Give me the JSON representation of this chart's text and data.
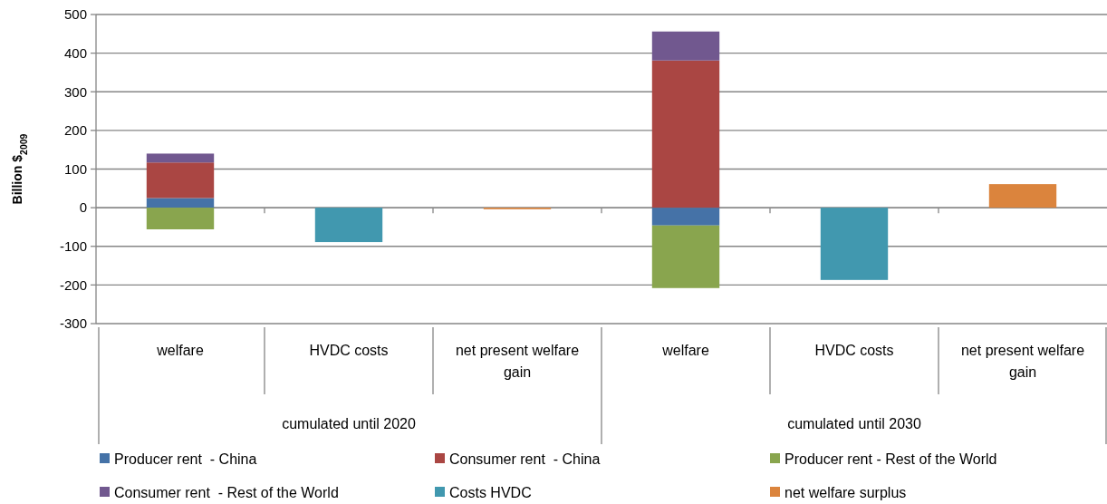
{
  "chart_data": {
    "type": "bar",
    "stacked": true,
    "ylabel": "Billion $$_{2009}$",
    "categories": [
      "welfare",
      "HVDC costs",
      "net present welfare gain",
      "welfare",
      "HVDC costs",
      "net present welfare gain"
    ],
    "annotations": [
      "cumulated until 2020",
      "cumulated until 2030"
    ],
    "ylim": [
      -300,
      500
    ],
    "yticks": [
      -300,
      -200,
      -100,
      0,
      100,
      200,
      300,
      400,
      500
    ],
    "grid": "y",
    "legend": "bottom",
    "series": [
      {
        "name": "Producer rent  - China",
        "color": "#4572a7",
        "values": [
          25,
          null,
          null,
          -46,
          null,
          null
        ]
      },
      {
        "name": "Consumer rent  - China",
        "color": "#aa4643",
        "values": [
          92,
          null,
          null,
          381,
          null,
          null
        ]
      },
      {
        "name": "Producer rent - Rest of the World",
        "color": "#89a54e",
        "values": [
          -56,
          null,
          null,
          -162,
          null,
          null
        ]
      },
      {
        "name": "Consumer rent  - Rest of the World",
        "color": "#71588f",
        "values": [
          23,
          null,
          null,
          75,
          null,
          null
        ]
      },
      {
        "name": "Costs HVDC",
        "color": "#4198af",
        "values": [
          null,
          -89,
          null,
          null,
          -187,
          null
        ]
      },
      {
        "name": "net welfare surplus",
        "color": "#db843d",
        "values": [
          null,
          null,
          -4,
          null,
          null,
          61
        ]
      }
    ]
  }
}
